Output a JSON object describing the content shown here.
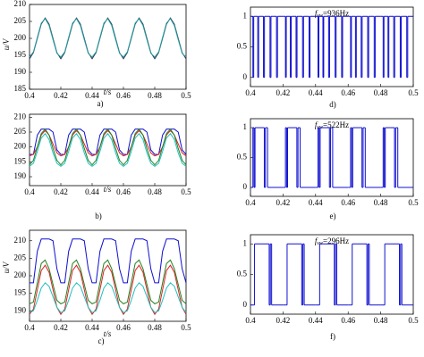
{
  "chart_data": [
    {
      "type": "line",
      "caption": "a)",
      "xlabel": "t/s",
      "ylabel": "u/V",
      "xlim": [
        0.4,
        0.5
      ],
      "ylim": [
        185,
        210
      ],
      "xticks": [
        0.4,
        0.42,
        0.44,
        0.46,
        0.48,
        0.5
      ],
      "yticks": [
        185,
        190,
        195,
        200,
        205,
        210
      ],
      "x": [
        0.4,
        0.4025,
        0.405,
        0.4075,
        0.41,
        0.4125,
        0.415,
        0.4175,
        0.42,
        0.4225,
        0.425,
        0.4275,
        0.43,
        0.4325,
        0.435,
        0.4375,
        0.44,
        0.4425,
        0.445,
        0.4475,
        0.45,
        0.4525,
        0.455,
        0.4575,
        0.46,
        0.4625,
        0.465,
        0.4675,
        0.47,
        0.4725,
        0.475,
        0.4775,
        0.48,
        0.4825,
        0.485,
        0.4875,
        0.49,
        0.4925,
        0.495,
        0.4975,
        0.5
      ],
      "series": [
        {
          "color": "#303050",
          "values": [
            194,
            195.8,
            200,
            204.2,
            206,
            204.2,
            200,
            195.8,
            194,
            195.8,
            200,
            204.2,
            206,
            204.2,
            200,
            195.8,
            194,
            195.8,
            200,
            204.2,
            206,
            204.2,
            200,
            195.8,
            194,
            195.8,
            200,
            204.2,
            206,
            204.2,
            200,
            195.8,
            194,
            195.8,
            200,
            204.2,
            206,
            204.2,
            200,
            195.8,
            194
          ]
        },
        {
          "color": "#20a0a0",
          "values": [
            194.5,
            196,
            200.3,
            204.5,
            205.8,
            203.8,
            199.6,
            195.6,
            194.5,
            196,
            200.3,
            204.5,
            205.8,
            203.8,
            199.6,
            195.6,
            194.5,
            196,
            200.3,
            204.5,
            205.8,
            203.8,
            199.6,
            195.6,
            194.5,
            196,
            200.3,
            204.5,
            205.8,
            203.8,
            199.6,
            195.6,
            194.5,
            196,
            200.3,
            204.5,
            205.8,
            203.8,
            199.6,
            195.6,
            194.5
          ]
        }
      ]
    },
    {
      "type": "line",
      "caption": "b)",
      "xlabel": "t/s",
      "xlim": [
        0.4,
        0.5
      ],
      "ylim": [
        187,
        211
      ],
      "xticks": [
        0.4,
        0.42,
        0.44,
        0.46,
        0.48,
        0.5
      ],
      "yticks": [
        190,
        195,
        200,
        205,
        210
      ],
      "x": [
        0.4,
        0.4025,
        0.405,
        0.4075,
        0.41,
        0.4125,
        0.415,
        0.4175,
        0.42,
        0.4225,
        0.425,
        0.4275,
        0.43,
        0.4325,
        0.435,
        0.4375,
        0.44,
        0.4425,
        0.445,
        0.4475,
        0.45,
        0.4525,
        0.455,
        0.4575,
        0.46,
        0.4625,
        0.465,
        0.4675,
        0.47,
        0.4725,
        0.475,
        0.4775,
        0.48,
        0.4825,
        0.485,
        0.4875,
        0.49,
        0.4925,
        0.495,
        0.4975,
        0.5
      ],
      "series": [
        {
          "color": "#1010d0",
          "values": [
            197.5,
            197.5,
            204,
            206,
            206,
            206,
            205,
            199,
            197.5,
            197.5,
            204,
            206,
            206,
            206,
            205,
            199,
            197.5,
            197.5,
            204,
            206,
            206,
            206,
            205,
            199,
            197.5,
            197.5,
            204,
            206,
            206,
            206,
            205,
            199,
            197.5,
            197.5,
            204,
            206,
            206,
            206,
            205,
            199,
            197.5
          ]
        },
        {
          "color": "#e02020",
          "values": [
            197,
            197.5,
            200,
            204,
            205.5,
            204,
            201,
            198,
            197,
            197.5,
            200,
            204,
            205.5,
            204,
            201,
            198,
            197,
            197.5,
            200,
            204,
            205.5,
            204,
            201,
            198,
            197,
            197.5,
            200,
            204,
            205.5,
            204,
            201,
            198,
            197,
            197.5,
            200,
            204,
            205.5,
            204,
            201,
            198,
            197
          ]
        },
        {
          "color": "#208020",
          "values": [
            194,
            195.5,
            200,
            204.5,
            206,
            204,
            199.5,
            195.5,
            194,
            195.5,
            200,
            204.5,
            206,
            204,
            199.5,
            195.5,
            194,
            195.5,
            200,
            204.5,
            206,
            204,
            199.5,
            195.5,
            194,
            195.5,
            200,
            204.5,
            206,
            204,
            199.5,
            195.5,
            194,
            195.5,
            200,
            204.5,
            206,
            204,
            199.5,
            195.5,
            194
          ]
        },
        {
          "color": "#20c0c0",
          "values": [
            193.5,
            194.5,
            198.5,
            203,
            204.5,
            202.5,
            198,
            194.5,
            193.5,
            194.5,
            198.5,
            203,
            204.5,
            202.5,
            198,
            194.5,
            193.5,
            194.5,
            198.5,
            203,
            204.5,
            202.5,
            198,
            194.5,
            193.5,
            194.5,
            198.5,
            203,
            204.5,
            202.5,
            198,
            194.5,
            193.5,
            194.5,
            198.5,
            203,
            204.5,
            202.5,
            198,
            194.5,
            193.5
          ]
        }
      ]
    },
    {
      "type": "line",
      "caption": "c)",
      "xlabel": "t/s",
      "ylabel": "u/V",
      "xlim": [
        0.4,
        0.5
      ],
      "ylim": [
        187,
        213
      ],
      "xticks": [
        0.4,
        0.42,
        0.44,
        0.46,
        0.48,
        0.5
      ],
      "yticks": [
        190,
        195,
        200,
        205,
        210
      ],
      "x": [
        0.4,
        0.4025,
        0.405,
        0.4075,
        0.41,
        0.4125,
        0.415,
        0.4175,
        0.42,
        0.4225,
        0.425,
        0.4275,
        0.43,
        0.4325,
        0.435,
        0.4375,
        0.44,
        0.4425,
        0.445,
        0.4475,
        0.45,
        0.4525,
        0.455,
        0.4575,
        0.46,
        0.4625,
        0.465,
        0.4675,
        0.47,
        0.4725,
        0.475,
        0.4775,
        0.48,
        0.4825,
        0.485,
        0.4875,
        0.49,
        0.4925,
        0.495,
        0.4975,
        0.5
      ],
      "series": [
        {
          "color": "#1010d0",
          "values": [
            198,
            198,
            207,
            210.5,
            210.5,
            210.5,
            210,
            202,
            198,
            198,
            207,
            210.5,
            210.5,
            210.5,
            210,
            202,
            198,
            198,
            207,
            210.5,
            210.5,
            210.5,
            210,
            202,
            198,
            198,
            207,
            210.5,
            210.5,
            210.5,
            210,
            202,
            198,
            198,
            207,
            210.5,
            210.5,
            210.5,
            210,
            202,
            198
          ]
        },
        {
          "color": "#e02020",
          "values": [
            189,
            190.5,
            196,
            201.5,
            203,
            201,
            196,
            191,
            189,
            190.5,
            196,
            201.5,
            203,
            201,
            196,
            191,
            189,
            190.5,
            196,
            201.5,
            203,
            201,
            196,
            191,
            189,
            190.5,
            196,
            201.5,
            203,
            201,
            196,
            191,
            189,
            190.5,
            196,
            201.5,
            203,
            201,
            196,
            191,
            189
          ]
        },
        {
          "color": "#208020",
          "values": [
            192,
            192.5,
            198,
            203.5,
            204.5,
            202,
            197.5,
            193,
            192,
            192.5,
            198,
            203.5,
            204.5,
            202,
            197.5,
            193,
            192,
            192.5,
            198,
            203.5,
            204.5,
            202,
            197.5,
            193,
            192,
            192.5,
            198,
            203.5,
            204.5,
            202,
            197.5,
            193,
            192,
            192.5,
            198,
            203.5,
            204.5,
            202,
            197.5,
            193,
            192
          ]
        },
        {
          "color": "#20c0c0",
          "values": [
            189.5,
            190,
            193,
            196.5,
            198,
            197,
            194,
            191,
            189.5,
            190,
            193,
            196.5,
            198,
            197,
            194,
            191,
            189.5,
            190,
            193,
            196.5,
            198,
            197,
            194,
            191,
            189.5,
            190,
            193,
            196.5,
            198,
            197,
            194,
            191,
            189.5,
            190,
            193,
            196.5,
            198,
            197,
            194,
            191,
            189.5
          ]
        }
      ]
    },
    {
      "type": "step",
      "caption": "d)",
      "annotation": [
        "f",
        "sw",
        "=936Hz"
      ],
      "color": "#1010d0",
      "xlim": [
        0.4,
        0.5
      ],
      "ylim": [
        -0.15,
        1.15
      ],
      "xticks": [
        0.4,
        0.42,
        0.44,
        0.46,
        0.48,
        0.5
      ],
      "yticks": [
        0,
        0.5,
        1
      ],
      "x": [
        0.4,
        0.4015,
        0.402,
        0.4045,
        0.405,
        0.408,
        0.4086,
        0.412,
        0.4126,
        0.416,
        0.4166,
        0.42,
        0.4215,
        0.422,
        0.4245,
        0.425,
        0.428,
        0.4286,
        0.432,
        0.4326,
        0.436,
        0.4366,
        0.44,
        0.4415,
        0.442,
        0.4445,
        0.445,
        0.448,
        0.4486,
        0.452,
        0.4526,
        0.456,
        0.4566,
        0.46,
        0.4615,
        0.462,
        0.4645,
        0.465,
        0.468,
        0.4686,
        0.472,
        0.4726,
        0.476,
        0.4766,
        0.48,
        0.4815,
        0.482,
        0.4845,
        0.485,
        0.488,
        0.4886,
        0.492,
        0.4926,
        0.496,
        0.4966
      ],
      "values": [
        1,
        0,
        1,
        0,
        1,
        0,
        1,
        0,
        1,
        0,
        1,
        1,
        0,
        1,
        0,
        1,
        0,
        1,
        0,
        1,
        0,
        1,
        1,
        0,
        1,
        0,
        1,
        0,
        1,
        0,
        1,
        0,
        1,
        1,
        0,
        1,
        0,
        1,
        0,
        1,
        0,
        1,
        0,
        1,
        1,
        0,
        1,
        0,
        1,
        0,
        1,
        0,
        1,
        0,
        1
      ]
    },
    {
      "type": "step",
      "caption": "e)",
      "annotation": [
        "f",
        "sw",
        "=522Hz"
      ],
      "color": "#1010d0",
      "xlim": [
        0.4,
        0.5
      ],
      "ylim": [
        -0.15,
        1.15
      ],
      "xticks": [
        0.4,
        0.42,
        0.44,
        0.46,
        0.48,
        0.5
      ],
      "yticks": [
        0,
        0.5,
        1
      ],
      "x": [
        0.4,
        0.4015,
        0.4022,
        0.4028,
        0.4085,
        0.4092,
        0.4105,
        0.42,
        0.4215,
        0.4222,
        0.4228,
        0.4285,
        0.4292,
        0.4305,
        0.44,
        0.4415,
        0.4422,
        0.4428,
        0.4485,
        0.4492,
        0.4505,
        0.46,
        0.4615,
        0.4622,
        0.4628,
        0.4685,
        0.4692,
        0.4705,
        0.48,
        0.4815,
        0.4822,
        0.4828,
        0.4885,
        0.4892,
        0.4905
      ],
      "values": [
        0,
        1,
        0,
        1,
        0,
        1,
        0,
        0,
        1,
        0,
        1,
        0,
        1,
        0,
        0,
        1,
        0,
        1,
        0,
        1,
        0,
        0,
        1,
        0,
        1,
        0,
        1,
        0,
        0,
        1,
        0,
        1,
        0,
        1,
        0
      ]
    },
    {
      "type": "step",
      "caption": "f)",
      "annotation": [
        "f",
        "sw",
        "=296Hz"
      ],
      "color": "#1010d0",
      "xlim": [
        0.4,
        0.5
      ],
      "ylim": [
        -0.15,
        1.15
      ],
      "xticks": [
        0.4,
        0.42,
        0.44,
        0.46,
        0.48,
        0.5
      ],
      "yticks": [
        0,
        0.5,
        1
      ],
      "x": [
        0.4,
        0.4025,
        0.4115,
        0.4122,
        0.413,
        0.42,
        0.4225,
        0.4315,
        0.4322,
        0.433,
        0.44,
        0.4425,
        0.4515,
        0.4522,
        0.453,
        0.46,
        0.4625,
        0.4715,
        0.4722,
        0.473,
        0.48,
        0.4825,
        0.4915,
        0.4922,
        0.493
      ],
      "values": [
        0,
        1,
        0,
        1,
        0,
        0,
        1,
        0,
        1,
        0,
        0,
        1,
        0,
        1,
        0,
        0,
        1,
        0,
        1,
        0,
        0,
        1,
        0,
        1,
        0
      ]
    }
  ]
}
